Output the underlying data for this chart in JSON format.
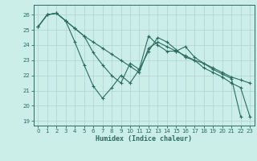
{
  "xlabel": "Humidex (Indice chaleur)",
  "background_color": "#cceee8",
  "grid_color": "#aad4ce",
  "line_color": "#2a6b62",
  "yticks": [
    19,
    20,
    21,
    22,
    23,
    24,
    25,
    26
  ],
  "xticks": [
    0,
    1,
    2,
    3,
    4,
    5,
    6,
    7,
    8,
    9,
    10,
    11,
    12,
    13,
    14,
    15,
    16,
    17,
    18,
    19,
    20,
    21,
    22,
    23
  ],
  "series1_x": [
    0,
    1,
    2,
    3,
    4,
    5,
    6,
    7,
    8,
    9,
    10,
    11,
    12,
    13,
    14,
    15,
    16,
    17,
    18,
    19,
    20,
    21,
    22
  ],
  "series1_y": [
    25.2,
    26.0,
    26.1,
    25.6,
    24.2,
    22.7,
    21.3,
    20.5,
    21.2,
    22.0,
    21.5,
    22.4,
    24.6,
    24.0,
    23.6,
    23.6,
    23.9,
    23.2,
    22.8,
    22.4,
    22.1,
    21.8,
    19.3
  ],
  "series2_x": [
    0,
    1,
    2,
    3,
    4,
    5,
    6,
    7,
    8,
    9,
    10,
    11,
    12,
    13,
    14,
    15,
    16,
    17,
    18,
    19,
    20,
    21,
    22,
    23
  ],
  "series2_y": [
    25.2,
    26.0,
    26.1,
    25.6,
    25.1,
    24.6,
    24.2,
    23.8,
    23.4,
    23.0,
    22.6,
    22.2,
    23.8,
    24.2,
    23.9,
    23.6,
    23.3,
    23.0,
    22.8,
    22.5,
    22.2,
    21.9,
    21.7,
    21.5
  ],
  "series3_x": [
    0,
    1,
    2,
    3,
    4,
    5,
    6,
    7,
    8,
    9,
    10,
    11,
    12,
    13,
    14,
    15,
    16,
    17,
    18,
    19,
    20,
    21,
    22,
    23
  ],
  "series3_y": [
    25.2,
    26.0,
    26.1,
    25.6,
    25.1,
    24.6,
    23.5,
    22.7,
    22.0,
    21.5,
    22.8,
    22.4,
    23.6,
    24.5,
    24.2,
    23.7,
    23.2,
    23.0,
    22.5,
    22.2,
    21.9,
    21.5,
    21.2,
    19.3
  ]
}
